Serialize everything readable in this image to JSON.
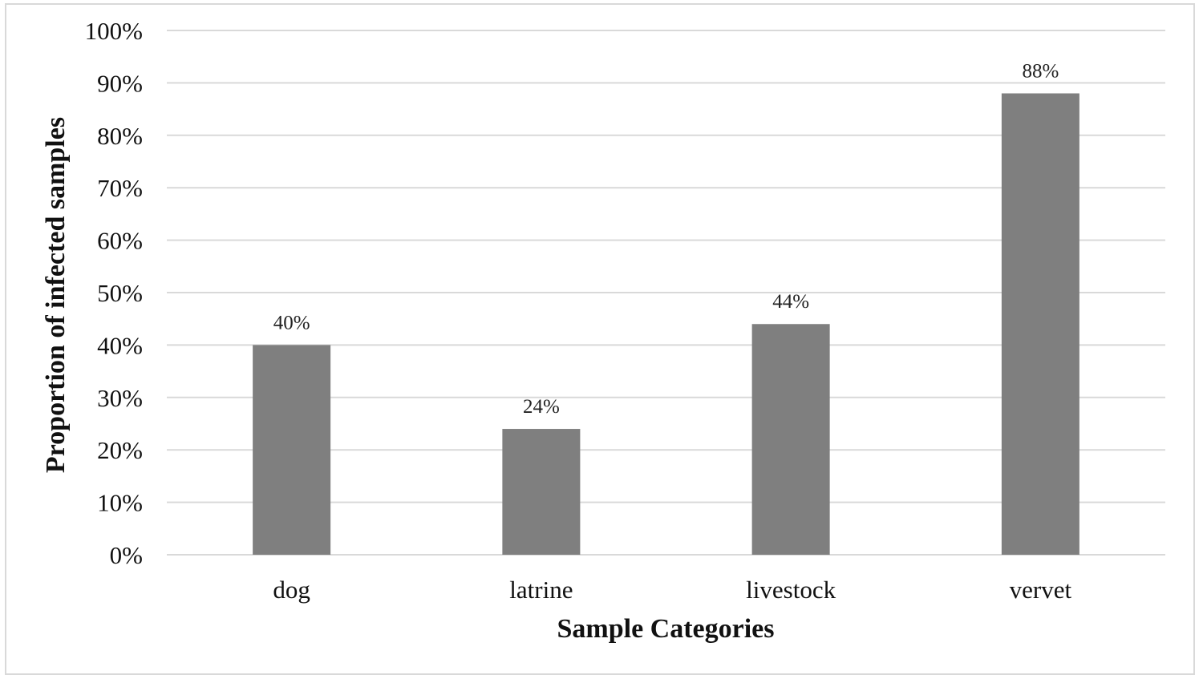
{
  "chart_data": {
    "type": "bar",
    "title": "",
    "xlabel": "Sample Categories",
    "ylabel": "Proportion of infected samples",
    "categories": [
      "dog",
      "latrine",
      "livestock",
      "vervet"
    ],
    "values": [
      40,
      24,
      44,
      88
    ],
    "data_labels": [
      "40%",
      "24%",
      "44%",
      "88%"
    ],
    "ylim": [
      0,
      100
    ],
    "y_ticks": [
      0,
      10,
      20,
      30,
      40,
      50,
      60,
      70,
      80,
      90,
      100
    ],
    "y_tick_labels": [
      "0%",
      "10%",
      "20%",
      "30%",
      "40%",
      "50%",
      "60%",
      "70%",
      "80%",
      "90%",
      "100%"
    ],
    "grid": true,
    "legend": "none",
    "colors": {
      "bar": "#7f7f7f",
      "grid": "#d9d9d9",
      "frame": "#d9d9d9"
    }
  }
}
